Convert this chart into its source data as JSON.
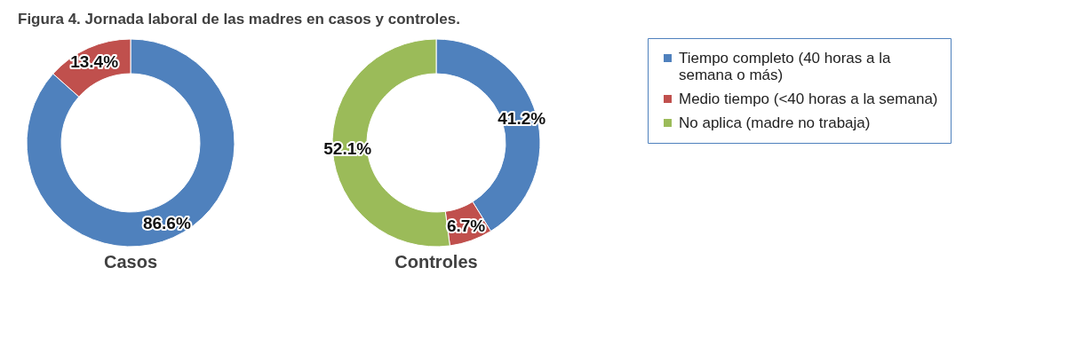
{
  "chart_data": [
    {
      "type": "donut",
      "title": "Figura 4. Jornada laboral de las madres en casos y controles.",
      "xlabel": "Casos",
      "categories": [
        null,
        null
      ],
      "values": [
        86.6,
        13.4
      ],
      "colors": [
        "#4f81bd",
        "#c0504d"
      ],
      "value_labels": [
        "86.6%",
        "13.4%"
      ],
      "legend": false
    },
    {
      "type": "donut",
      "xlabel": "Controles",
      "categories": [
        "Tiempo completo (40 horas a la semana o más)",
        "Medio tiempo (<40 horas a la semana)",
        "No aplica (madre no trabaja)"
      ],
      "values": [
        41.2,
        6.7,
        52.1
      ],
      "colors": [
        "#4f81bd",
        "#c0504d",
        "#9bbb59"
      ],
      "value_labels": [
        "41.2%",
        "6.7%",
        "52.1%"
      ],
      "legend": "right"
    }
  ]
}
